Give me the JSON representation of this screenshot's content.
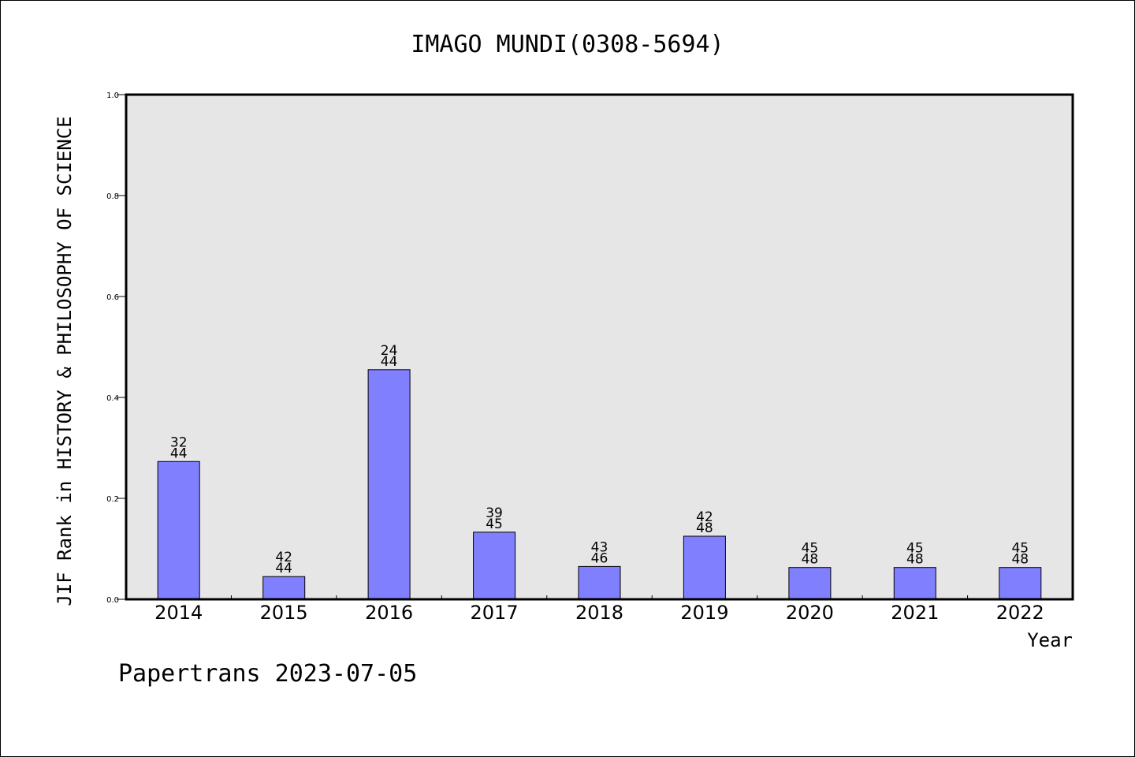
{
  "chart_data": {
    "type": "bar",
    "title": "IMAGO MUNDI(0308-5694)",
    "xlabel": "Year",
    "ylabel": "JIF Rank in HISTORY & PHILOSOPHY OF SCIENCE",
    "ylim": [
      0,
      1.0
    ],
    "yticks": [
      "0.0",
      "0.2",
      "0.4",
      "0.6",
      "0.8",
      "1.0"
    ],
    "grid": false,
    "legend": "none",
    "categories": [
      "2014",
      "2015",
      "2016",
      "2017",
      "2018",
      "2019",
      "2020",
      "2021",
      "2022"
    ],
    "values": [
      0.273,
      0.045,
      0.455,
      0.133,
      0.065,
      0.125,
      0.063,
      0.063,
      0.063
    ],
    "bar_labels": [
      {
        "rank": "32",
        "total": "44"
      },
      {
        "rank": "42",
        "total": "44"
      },
      {
        "rank": "24",
        "total": "44"
      },
      {
        "rank": "39",
        "total": "45"
      },
      {
        "rank": "43",
        "total": "46"
      },
      {
        "rank": "42",
        "total": "48"
      },
      {
        "rank": "45",
        "total": "48"
      },
      {
        "rank": "45",
        "total": "48"
      },
      {
        "rank": "45",
        "total": "48"
      }
    ],
    "colors": {
      "bar": "#8080ff",
      "plot_background": "#e6e6e6",
      "axis": "#000000"
    }
  },
  "footer": "Papertrans 2023-07-05"
}
